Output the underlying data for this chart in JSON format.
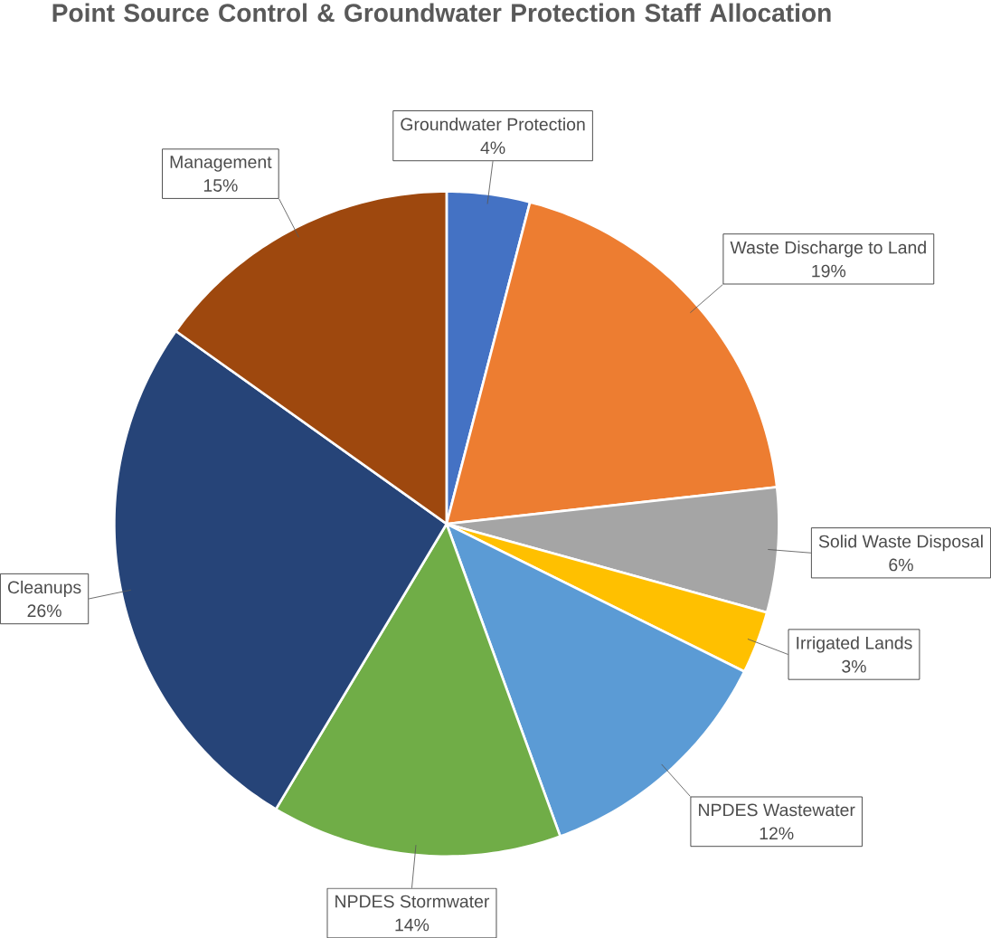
{
  "chart_data": {
    "type": "pie",
    "title": "Point Source Control & Groundwater Protection Staff Allocation",
    "categories": [
      "Groundwater Protection",
      "Waste Discharge to Land",
      "Solid Waste Disposal",
      "Irrigated Lands",
      "NPDES Wastewater",
      "NPDES Stormwater",
      "Cleanups",
      "Management"
    ],
    "values": [
      4,
      19,
      6,
      3,
      12,
      14,
      26,
      15
    ],
    "value_labels": [
      "4%",
      "19%",
      "6%",
      "3%",
      "12%",
      "14%",
      "26%",
      "15%"
    ],
    "colors": [
      "#4472c4",
      "#ed7d31",
      "#a5a5a5",
      "#ffc000",
      "#5b9bd5",
      "#70ad47",
      "#264478",
      "#9e480e"
    ]
  }
}
